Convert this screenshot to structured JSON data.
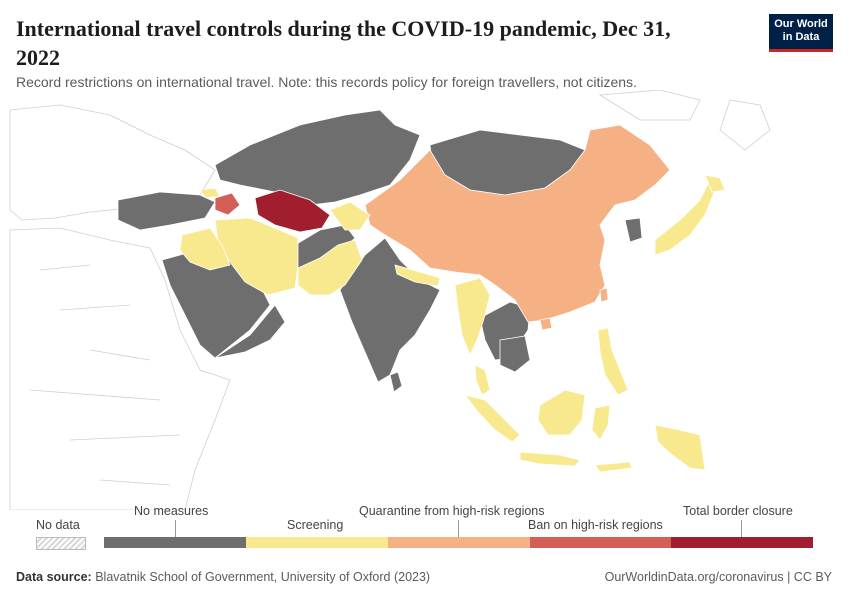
{
  "header": {
    "title": "International travel controls during the COVID-19 pandemic, Dec 31, 2022",
    "subtitle": "Record restrictions on international travel. Note: this records policy for foreign travellers, not citizens."
  },
  "logo": {
    "line1": "Our World",
    "line2": "in Data"
  },
  "legend": {
    "no_data_label": "No data",
    "categories": [
      {
        "label": "No measures",
        "color": "#6e6e6e"
      },
      {
        "label": "Screening",
        "color": "#f9e98e"
      },
      {
        "label": "Quarantine from high-risk regions",
        "color": "#f5b184"
      },
      {
        "label": "Ban on high-risk regions",
        "color": "#d45f56"
      },
      {
        "label": "Total border closure",
        "color": "#a01e2e"
      }
    ]
  },
  "footer": {
    "source_label": "Data source:",
    "source_text": "Blavatnik School of Government, University of Oxford (2023)",
    "right_text": "OurWorldinData.org/coronavirus | CC BY"
  },
  "colors": {
    "no_measures": "#6e6e6e",
    "screening": "#f9e98e",
    "quarantine": "#f5b184",
    "ban": "#d45f56",
    "closure": "#a01e2e",
    "no_data": "#ffffff",
    "border": "#ffffff",
    "outline": "#cfcfcf"
  }
}
